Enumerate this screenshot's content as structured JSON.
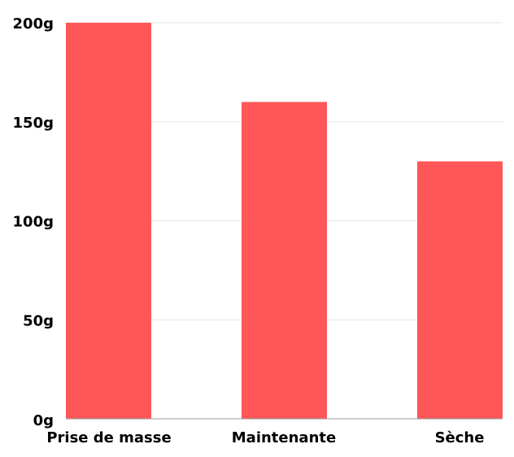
{
  "chart_data": {
    "type": "bar",
    "categories": [
      "Prise de masse",
      "Maintenante",
      "Sèche"
    ],
    "values": [
      200,
      160,
      130
    ],
    "unit": "g",
    "ylim": [
      0,
      200
    ],
    "yticks": [
      "0g",
      "50g",
      "100g",
      "150g",
      "200g"
    ],
    "ytick_values": [
      0,
      50,
      100,
      150,
      200
    ],
    "title": "",
    "xlabel": "",
    "ylabel": "",
    "grid": true,
    "legend": "none",
    "colors": {
      "bar": "#ff5757",
      "grid": "#e6e6e6",
      "axis": "#9a9a9a",
      "text": "#000000"
    }
  }
}
